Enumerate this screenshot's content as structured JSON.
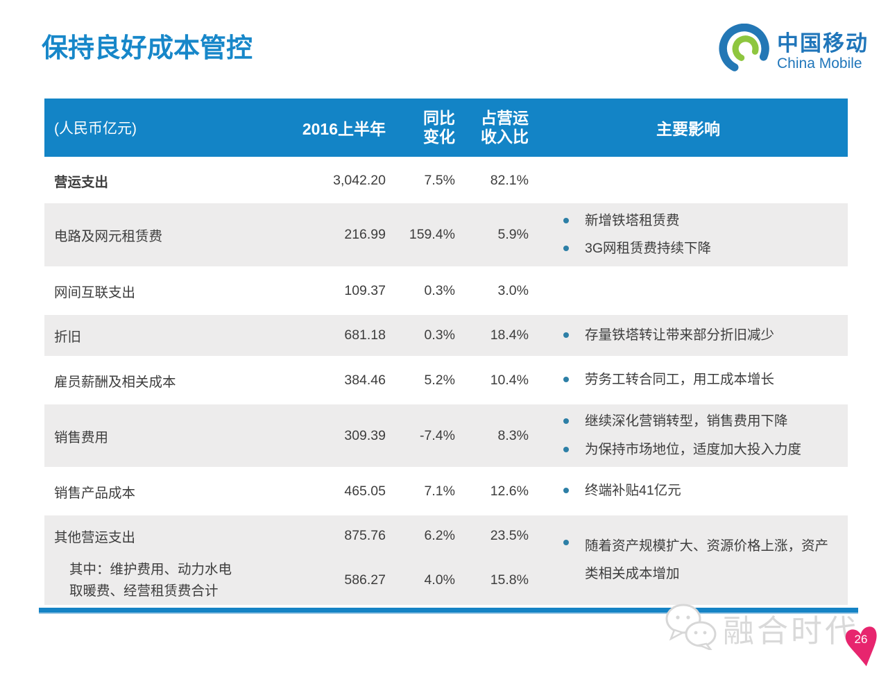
{
  "title": "保持良好成本管控",
  "logo": {
    "icon": "china-mobile-swirl-icon",
    "cn": "中国移动",
    "en": "China Mobile"
  },
  "table": {
    "header": {
      "unit": "(人民币亿元)",
      "period": "2016上半年",
      "yoy_line1": "同比",
      "yoy_line2": "变化",
      "share_line1": "占营运",
      "share_line2": "收入比",
      "impact": "主要影响"
    },
    "rows": [
      {
        "label": "营运支出",
        "bold": true,
        "shade": "white",
        "value": "3,042.20",
        "yoy": "7.5%",
        "share": "82.1%",
        "bullets": []
      },
      {
        "label": "电路及网元租赁费",
        "shade": "gray",
        "value": "216.99",
        "yoy": "159.4%",
        "share": "5.9%",
        "bullets": [
          "新增铁塔租赁费",
          "3G网租赁费持续下降"
        ]
      },
      {
        "label": "网间互联支出",
        "shade": "white",
        "value": "109.37",
        "yoy": "0.3%",
        "share": "3.0%",
        "bullets": []
      },
      {
        "label": "折旧",
        "shade": "gray",
        "value": "681.18",
        "yoy": "0.3%",
        "share": "18.4%",
        "bullets": [
          "存量铁塔转让带来部分折旧减少"
        ]
      },
      {
        "label": "雇员薪酬及相关成本",
        "shade": "white",
        "value": "384.46",
        "yoy": "5.2%",
        "share": "10.4%",
        "bullets": [
          "劳务工转合同工，用工成本增长"
        ]
      },
      {
        "label": "销售费用",
        "shade": "gray",
        "value": "309.39",
        "yoy": "-7.4%",
        "share": "8.3%",
        "bullets": [
          "继续深化营销转型，销售费用下降",
          "为保持市场地位，适度加大投入力度"
        ]
      },
      {
        "label": "销售产品成本",
        "shade": "white",
        "value": "465.05",
        "yoy": "7.1%",
        "share": "12.6%",
        "bullets": [
          "终端补贴41亿元"
        ]
      },
      {
        "label": "其他营运支出",
        "shade": "gray",
        "value": "875.76",
        "yoy": "6.2%",
        "share": "23.5%",
        "bullets": [
          "随着资产规模扩大、资源价格上涨，资产类相关成本增加"
        ],
        "sub": {
          "label": "其中：维护费用、动力水电取暖费、经营租赁费合计",
          "value": "586.27",
          "yoy": "4.0%",
          "share": "15.8%"
        }
      }
    ]
  },
  "footer": {
    "watermark_icon": "chat-bubbles-icon",
    "watermark_text": "融合时代",
    "page_badge_icon": "heart-pin-icon",
    "page_number": "26"
  },
  "colors": {
    "header_bg": "#1384c6",
    "row_alt_bg": "#edecec",
    "title_blue": "#1787c9",
    "bullet_dot": "#2d7fa6",
    "bottom_bar": "#1583c5",
    "page_badge_pink": "#e7256e",
    "logo_blue": "#2377b5",
    "logo_green": "#8ec63f",
    "text": "#3d3d3d",
    "watermark_gray": "#d9d9d9"
  }
}
